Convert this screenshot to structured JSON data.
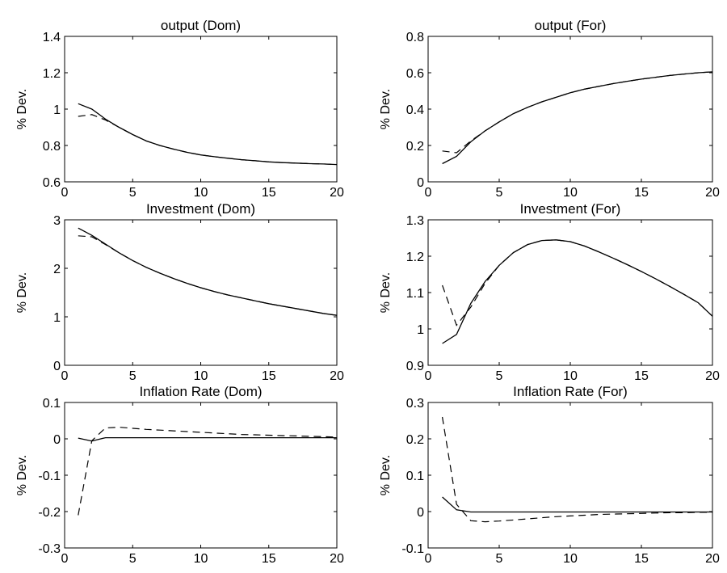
{
  "chart_data": [
    {
      "type": "line",
      "title": "output (Dom)",
      "ylabel": "% Dev.",
      "xlim": [
        0,
        20
      ],
      "ylim": [
        0.6,
        1.4
      ],
      "xticks": [
        0,
        5,
        10,
        15,
        20
      ],
      "yticks": [
        0.6,
        0.8,
        1,
        1.2,
        1.4
      ],
      "xtick_labels": [
        "0",
        "5",
        "10",
        "15",
        "20"
      ],
      "ytick_labels": [
        "0.6",
        "0.8",
        "1",
        "1.2",
        "1.4"
      ],
      "series": [
        {
          "style": "solid",
          "x": [
            1,
            2,
            3,
            4,
            5,
            6,
            7,
            8,
            9,
            10,
            11,
            12,
            13,
            14,
            15,
            16,
            17,
            18,
            19,
            20
          ],
          "y": [
            1.03,
            1.0,
            0.945,
            0.9,
            0.86,
            0.825,
            0.8,
            0.78,
            0.762,
            0.748,
            0.738,
            0.73,
            0.722,
            0.716,
            0.71,
            0.706,
            0.703,
            0.7,
            0.698,
            0.695
          ]
        },
        {
          "style": "dashed",
          "x": [
            1,
            2,
            3,
            4,
            5,
            6,
            7,
            8,
            9,
            10,
            11,
            12,
            13,
            14,
            15,
            16,
            17,
            18,
            19,
            20
          ],
          "y": [
            0.96,
            0.97,
            0.94,
            0.9,
            0.86,
            0.825,
            0.8,
            0.78,
            0.762,
            0.748,
            0.738,
            0.73,
            0.722,
            0.716,
            0.71,
            0.706,
            0.703,
            0.7,
            0.698,
            0.695
          ]
        }
      ]
    },
    {
      "type": "line",
      "title": "output (For)",
      "ylabel": "% Dev.",
      "xlim": [
        0,
        20
      ],
      "ylim": [
        0,
        0.8
      ],
      "xticks": [
        0,
        5,
        10,
        15,
        20
      ],
      "yticks": [
        0,
        0.2,
        0.4,
        0.6,
        0.8
      ],
      "xtick_labels": [
        "0",
        "5",
        "10",
        "15",
        "20"
      ],
      "ytick_labels": [
        "0",
        "0.2",
        "0.4",
        "0.6",
        "0.8"
      ],
      "series": [
        {
          "style": "solid",
          "x": [
            1,
            2,
            3,
            4,
            5,
            6,
            7,
            8,
            9,
            10,
            11,
            12,
            13,
            14,
            15,
            16,
            17,
            18,
            19,
            20
          ],
          "y": [
            0.1,
            0.14,
            0.22,
            0.28,
            0.33,
            0.375,
            0.41,
            0.44,
            0.465,
            0.49,
            0.51,
            0.525,
            0.54,
            0.553,
            0.565,
            0.575,
            0.585,
            0.593,
            0.6,
            0.605
          ]
        },
        {
          "style": "dashed",
          "x": [
            1,
            2,
            3,
            4,
            5,
            6,
            7,
            8,
            9,
            10,
            11,
            12,
            13,
            14,
            15,
            16,
            17,
            18,
            19,
            20
          ],
          "y": [
            0.17,
            0.16,
            0.225,
            0.28,
            0.33,
            0.375,
            0.41,
            0.44,
            0.465,
            0.49,
            0.51,
            0.525,
            0.54,
            0.553,
            0.565,
            0.575,
            0.585,
            0.593,
            0.6,
            0.605
          ]
        }
      ]
    },
    {
      "type": "line",
      "title": "Investment (Dom)",
      "ylabel": "% Dev.",
      "xlim": [
        0,
        20
      ],
      "ylim": [
        0,
        3
      ],
      "xticks": [
        0,
        5,
        10,
        15,
        20
      ],
      "yticks": [
        0,
        1,
        2,
        3
      ],
      "xtick_labels": [
        "0",
        "5",
        "10",
        "15",
        "20"
      ],
      "ytick_labels": [
        "0",
        "1",
        "2",
        "3"
      ],
      "series": [
        {
          "style": "solid",
          "x": [
            1,
            2,
            3,
            4,
            5,
            6,
            7,
            8,
            9,
            10,
            11,
            12,
            13,
            14,
            15,
            16,
            17,
            18,
            19,
            20
          ],
          "y": [
            2.83,
            2.68,
            2.5,
            2.32,
            2.16,
            2.02,
            1.9,
            1.79,
            1.69,
            1.6,
            1.52,
            1.45,
            1.39,
            1.33,
            1.27,
            1.22,
            1.17,
            1.12,
            1.07,
            1.03
          ]
        },
        {
          "style": "dashed",
          "x": [
            1,
            2,
            3,
            4,
            5,
            6,
            7,
            8,
            9,
            10,
            11,
            12,
            13,
            14,
            15,
            16,
            17,
            18,
            19,
            20
          ],
          "y": [
            2.67,
            2.65,
            2.49,
            2.32,
            2.16,
            2.02,
            1.9,
            1.79,
            1.69,
            1.6,
            1.52,
            1.45,
            1.39,
            1.33,
            1.27,
            1.22,
            1.17,
            1.12,
            1.07,
            1.03
          ]
        }
      ]
    },
    {
      "type": "line",
      "title": "Investment (For)",
      "ylabel": "% Dev.",
      "xlim": [
        0,
        20
      ],
      "ylim": [
        0.9,
        1.3
      ],
      "xticks": [
        0,
        5,
        10,
        15,
        20
      ],
      "yticks": [
        0.9,
        1,
        1.1,
        1.2,
        1.3
      ],
      "xtick_labels": [
        "0",
        "5",
        "10",
        "15",
        "20"
      ],
      "ytick_labels": [
        "0.9",
        "1",
        "1.1",
        "1.2",
        "1.3"
      ],
      "series": [
        {
          "style": "solid",
          "x": [
            1,
            2,
            3,
            4,
            5,
            6,
            7,
            8,
            9,
            10,
            11,
            12,
            13,
            14,
            15,
            16,
            17,
            18,
            19,
            20
          ],
          "y": [
            0.96,
            0.985,
            1.07,
            1.13,
            1.175,
            1.21,
            1.232,
            1.243,
            1.245,
            1.24,
            1.228,
            1.212,
            1.195,
            1.177,
            1.158,
            1.138,
            1.117,
            1.095,
            1.072,
            1.035
          ]
        },
        {
          "style": "dashed",
          "x": [
            1,
            2,
            3,
            4,
            5,
            6,
            7,
            8,
            9,
            10,
            11,
            12,
            13,
            14,
            15,
            16,
            17,
            18,
            19,
            20
          ],
          "y": [
            1.12,
            1.01,
            1.06,
            1.125,
            1.175,
            1.21,
            1.232,
            1.243,
            1.245,
            1.24,
            1.228,
            1.212,
            1.195,
            1.177,
            1.158,
            1.138,
            1.117,
            1.095,
            1.072,
            1.035
          ]
        }
      ]
    },
    {
      "type": "line",
      "title": "Inflation Rate (Dom)",
      "ylabel": "% Dev.",
      "xlim": [
        0,
        20
      ],
      "ylim": [
        -0.3,
        0.1
      ],
      "xticks": [
        0,
        5,
        10,
        15,
        20
      ],
      "yticks": [
        -0.3,
        -0.2,
        -0.1,
        0,
        0.1
      ],
      "xtick_labels": [
        "0",
        "5",
        "10",
        "15",
        "20"
      ],
      "ytick_labels": [
        "-0.3",
        "-0.2",
        "-0.1",
        "0",
        "0.1"
      ],
      "series": [
        {
          "style": "solid",
          "x": [
            1,
            2,
            3,
            4,
            5,
            6,
            7,
            8,
            9,
            10,
            11,
            12,
            13,
            14,
            15,
            16,
            17,
            18,
            19,
            20
          ],
          "y": [
            0.002,
            -0.006,
            0.003,
            0.003,
            0.003,
            0.003,
            0.003,
            0.003,
            0.003,
            0.003,
            0.003,
            0.003,
            0.003,
            0.003,
            0.003,
            0.003,
            0.003,
            0.003,
            0.003,
            0.003
          ]
        },
        {
          "style": "dashed",
          "x": [
            1,
            2,
            3,
            4,
            5,
            6,
            7,
            8,
            9,
            10,
            11,
            12,
            13,
            14,
            15,
            16,
            17,
            18,
            19,
            20
          ],
          "y": [
            -0.21,
            -0.005,
            0.03,
            0.032,
            0.029,
            0.026,
            0.024,
            0.022,
            0.02,
            0.018,
            0.016,
            0.014,
            0.012,
            0.011,
            0.01,
            0.009,
            0.008,
            0.007,
            0.006,
            0.005
          ]
        }
      ]
    },
    {
      "type": "line",
      "title": "Inflation Rate (For)",
      "ylabel": "% Dev.",
      "xlim": [
        0,
        20
      ],
      "ylim": [
        -0.1,
        0.3
      ],
      "xticks": [
        0,
        5,
        10,
        15,
        20
      ],
      "yticks": [
        -0.1,
        0,
        0.1,
        0.2,
        0.3
      ],
      "xtick_labels": [
        "0",
        "5",
        "10",
        "15",
        "20"
      ],
      "ytick_labels": [
        "-0.1",
        "0",
        "0.1",
        "0.2",
        "0.3"
      ],
      "series": [
        {
          "style": "solid",
          "x": [
            1,
            2,
            3,
            4,
            5,
            6,
            7,
            8,
            9,
            10,
            11,
            12,
            13,
            14,
            15,
            16,
            17,
            18,
            19,
            20
          ],
          "y": [
            0.04,
            0.005,
            -0.001,
            -0.001,
            -0.001,
            -0.001,
            -0.001,
            -0.001,
            -0.001,
            -0.001,
            -0.001,
            -0.001,
            -0.001,
            -0.001,
            -0.001,
            -0.001,
            -0.001,
            -0.001,
            -0.001,
            -0.001
          ]
        },
        {
          "style": "dashed",
          "x": [
            1,
            2,
            3,
            4,
            5,
            6,
            7,
            8,
            9,
            10,
            11,
            12,
            13,
            14,
            15,
            16,
            17,
            18,
            19,
            20
          ],
          "y": [
            0.26,
            0.02,
            -0.025,
            -0.028,
            -0.026,
            -0.023,
            -0.02,
            -0.017,
            -0.014,
            -0.012,
            -0.01,
            -0.008,
            -0.007,
            -0.006,
            -0.005,
            -0.004,
            -0.003,
            -0.003,
            -0.002,
            -0.002
          ]
        }
      ]
    }
  ]
}
